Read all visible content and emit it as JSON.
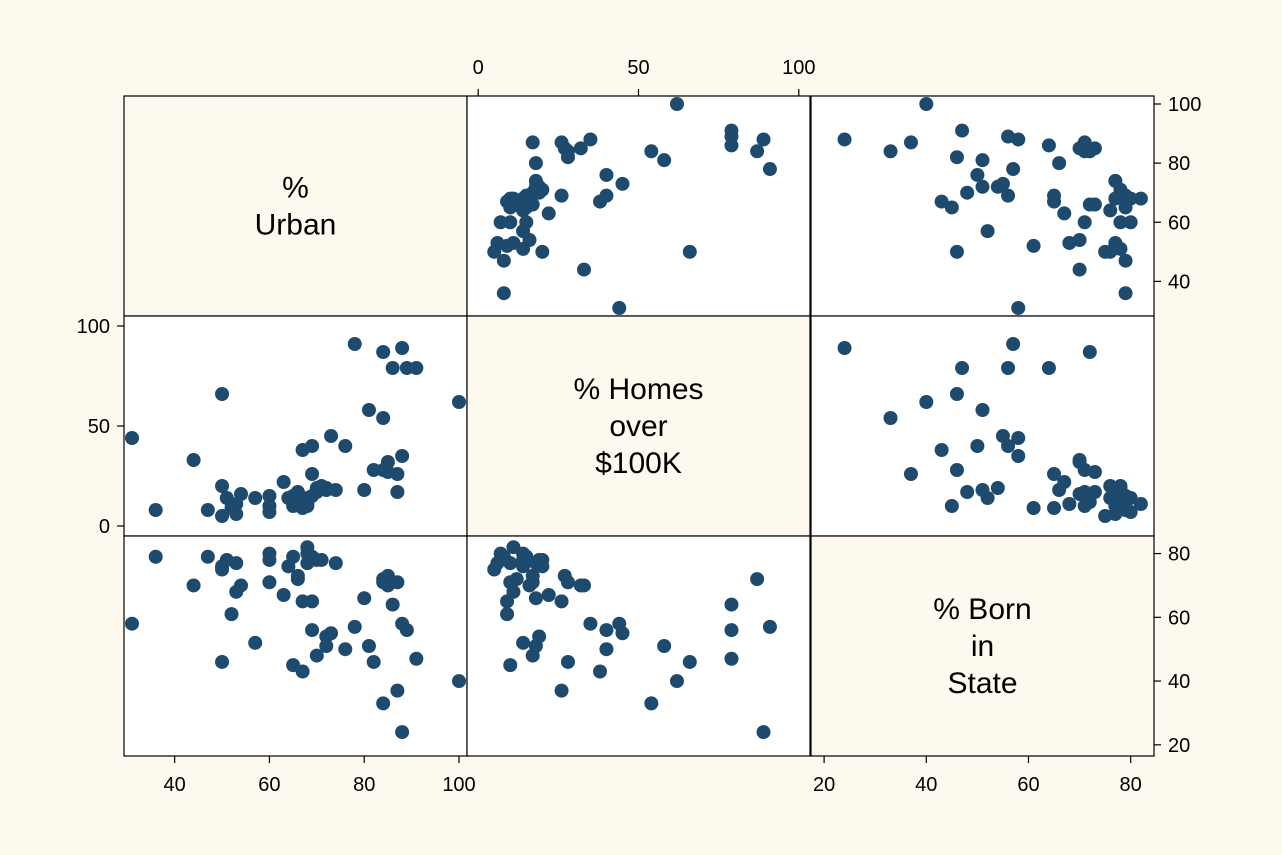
{
  "chart_data": {
    "type": "scatter-matrix",
    "marker_color": "#1e4a6e",
    "background_color": "#fdf9ef",
    "variables": [
      {
        "name": "% Urban",
        "label_lines": [
          "%",
          "Urban"
        ],
        "range": [
          31,
          100
        ],
        "ticks": [
          40,
          60,
          80,
          100
        ]
      },
      {
        "name": "% Homes over $100K",
        "label_lines": [
          "% Homes",
          "over",
          "$100K"
        ],
        "range": [
          -1,
          101
        ],
        "ticks": [
          0,
          50,
          100
        ]
      },
      {
        "name": "% Born in State",
        "label_lines": [
          "% Born",
          "in",
          "State"
        ],
        "range": [
          19,
          83
        ],
        "ticks": [
          20,
          40,
          60,
          80
        ]
      }
    ],
    "observations": [
      [
        31,
        44,
        58
      ],
      [
        36,
        8,
        79
      ],
      [
        44,
        33,
        70
      ],
      [
        47,
        8,
        79
      ],
      [
        50,
        20,
        76
      ],
      [
        50,
        5,
        75
      ],
      [
        50,
        66,
        46
      ],
      [
        51,
        14,
        78
      ],
      [
        52,
        9,
        61
      ],
      [
        53,
        6,
        77
      ],
      [
        53,
        11,
        68
      ],
      [
        54,
        16,
        70
      ],
      [
        57,
        14,
        52
      ],
      [
        60,
        7,
        80
      ],
      [
        60,
        10,
        71
      ],
      [
        60,
        15,
        78
      ],
      [
        63,
        22,
        67
      ],
      [
        64,
        14,
        76
      ],
      [
        65,
        10,
        45
      ],
      [
        65,
        15,
        79
      ],
      [
        66,
        12,
        72
      ],
      [
        66,
        17,
        73
      ],
      [
        67,
        38,
        43
      ],
      [
        67,
        9,
        65
      ],
      [
        68,
        11,
        82
      ],
      [
        68,
        14,
        80
      ],
      [
        68,
        10,
        77
      ],
      [
        69,
        26,
        65
      ],
      [
        69,
        40,
        56
      ],
      [
        69,
        15,
        79
      ],
      [
        70,
        19,
        78
      ],
      [
        70,
        17,
        48
      ],
      [
        71,
        20,
        78
      ],
      [
        72,
        19,
        54
      ],
      [
        72,
        18,
        51
      ],
      [
        73,
        45,
        55
      ],
      [
        74,
        18,
        77
      ],
      [
        76,
        40,
        50
      ],
      [
        78,
        91,
        57
      ],
      [
        80,
        18,
        66
      ],
      [
        81,
        58,
        51
      ],
      [
        82,
        28,
        46
      ],
      [
        84,
        28,
        71
      ],
      [
        84,
        54,
        33
      ],
      [
        84,
        87,
        72
      ],
      [
        85,
        27,
        73
      ],
      [
        85,
        32,
        70
      ],
      [
        86,
        79,
        64
      ],
      [
        87,
        17,
        71
      ],
      [
        87,
        26,
        37
      ],
      [
        88,
        35,
        58
      ],
      [
        88,
        89,
        24
      ],
      [
        89,
        79,
        56
      ],
      [
        91,
        79,
        47
      ],
      [
        100,
        62,
        40
      ]
    ]
  }
}
